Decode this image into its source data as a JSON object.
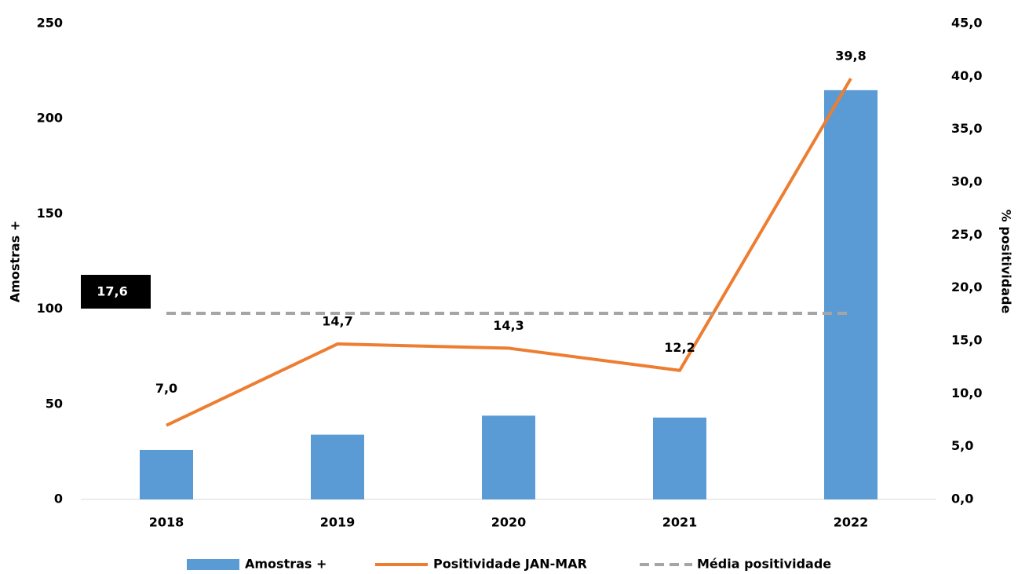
{
  "chart_data": {
    "type": "bar",
    "categories": [
      "2018",
      "2019",
      "2020",
      "2021",
      "2022"
    ],
    "ylabel": "Amostras +",
    "y2label": "% positividade",
    "ylim": [
      0,
      250
    ],
    "yticks": [
      0,
      50,
      100,
      150,
      200,
      250
    ],
    "y2lim": [
      0,
      45
    ],
    "y2ticks": [
      {
        "value": 0,
        "label": "0,0"
      },
      {
        "value": 5,
        "label": "5,0"
      },
      {
        "value": 10,
        "label": "10,0"
      },
      {
        "value": 15,
        "label": "15,0"
      },
      {
        "value": 20,
        "label": "20,0"
      },
      {
        "value": 25,
        "label": "25,0"
      },
      {
        "value": 30,
        "label": "30,0"
      },
      {
        "value": 35,
        "label": "35,0"
      },
      {
        "value": 40,
        "label": "40,0"
      },
      {
        "value": 45,
        "label": "45,0"
      }
    ],
    "series": [
      {
        "name": "Amostras +",
        "type": "bar",
        "color": "#5b9bd5",
        "values": [
          26,
          34,
          44,
          43,
          215
        ]
      },
      {
        "name": "Positividade JAN-MAR",
        "type": "line",
        "axis": "y2",
        "color": "#ed7d31",
        "values": [
          7.0,
          14.7,
          14.3,
          12.2,
          39.8
        ],
        "value_labels": [
          "7,0",
          "14,7",
          "14,3",
          "12,2",
          "39,8"
        ]
      }
    ],
    "mean": {
      "name": "Média positividade",
      "axis": "y2",
      "color": "#a5a5a5",
      "dashed": true,
      "value": 17.6,
      "value_label": "17,6"
    }
  }
}
